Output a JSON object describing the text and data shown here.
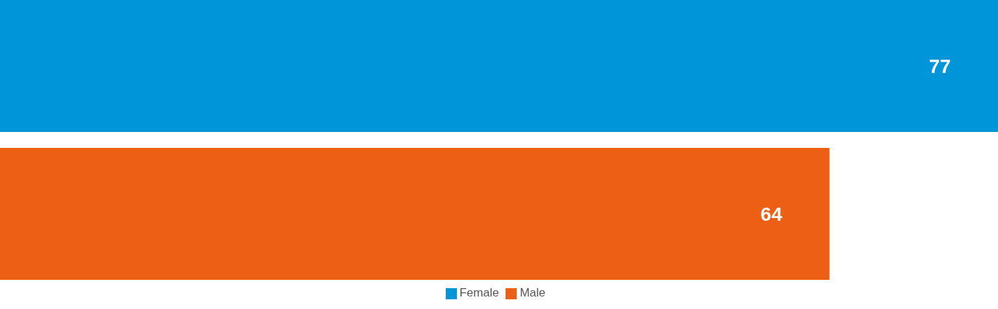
{
  "chart_data": {
    "type": "bar",
    "orientation": "horizontal",
    "categories": [
      null
    ],
    "series": [
      {
        "name": "Female",
        "color": "#0094d9",
        "values": [
          77
        ]
      },
      {
        "name": "Male",
        "color": "#ed5f15",
        "values": [
          64
        ]
      }
    ],
    "data_labels": true,
    "legend": "bottom"
  }
}
